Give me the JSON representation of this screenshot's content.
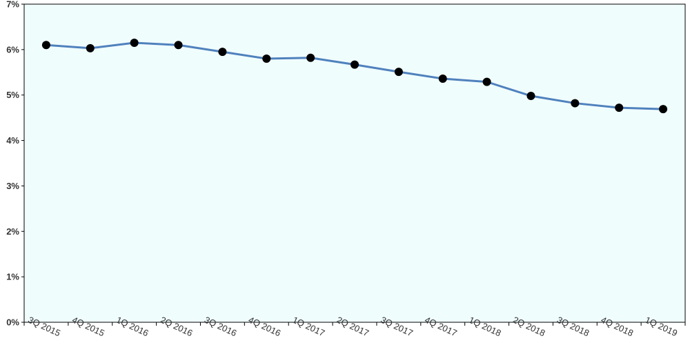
{
  "chart_data": {
    "type": "line",
    "title": "",
    "xlabel": "",
    "ylabel": "",
    "categories": [
      "3Q 2015",
      "4Q 2015",
      "1Q 2016",
      "2Q 2016",
      "3Q 2016",
      "4Q 2016",
      "1Q 2017",
      "2Q 2017",
      "3Q 2017",
      "4Q 2017",
      "1Q 2018",
      "2Q 2018",
      "3Q 2018",
      "4Q 2018",
      "1Q 2019"
    ],
    "series": [
      {
        "values": [
          6.1,
          6.03,
          6.15,
          6.1,
          5.95,
          5.8,
          5.82,
          5.67,
          5.51,
          5.36,
          5.29,
          4.98,
          4.82,
          4.72,
          4.69
        ]
      }
    ],
    "ylim": [
      0,
      7
    ],
    "yticks": [
      "0%",
      "1%",
      "2%",
      "3%",
      "4%",
      "5%",
      "6%",
      "7%"
    ],
    "grid": false,
    "legend": "none",
    "colors": {
      "plot_background": "#f0fdfd",
      "line": "#4f81bd",
      "marker": "#000000",
      "axis": "#000000"
    }
  }
}
